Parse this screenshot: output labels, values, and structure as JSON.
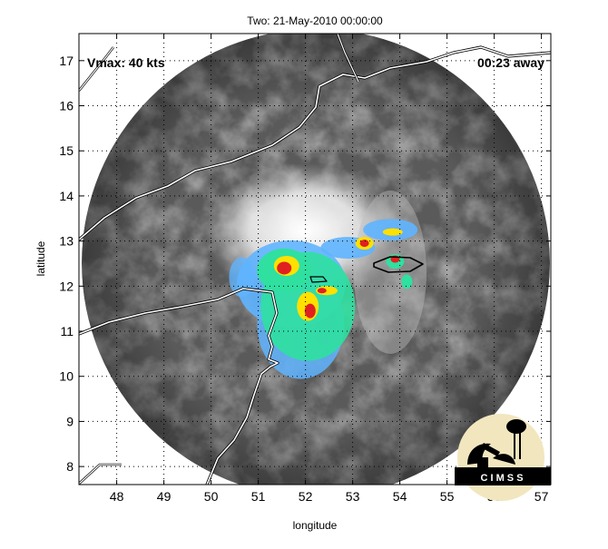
{
  "title": "Two: 21-May-2010 00:00:00",
  "xlabel": "longitude",
  "ylabel": "latitude",
  "vmax_label": "Vmax: 40 kts",
  "time_away_label": "00:23 away",
  "logo_text": "C I M S S",
  "xlim": [
    47.2,
    57.2
  ],
  "ylim": [
    7.6,
    17.6
  ],
  "x_ticks": [
    "48",
    "49",
    "50",
    "51",
    "52",
    "53",
    "54",
    "55",
    "56",
    "57"
  ],
  "y_ticks": [
    "8",
    "9",
    "10",
    "11",
    "12",
    "13",
    "14",
    "15",
    "16",
    "17"
  ],
  "storm_center": [
    52.3,
    12.4
  ],
  "colors": {
    "background": "#ffffff",
    "frame": "#000000",
    "coastline": "#ffffff",
    "rain_light": "#5fb4ff",
    "rain_moderate": "#2fe0a0",
    "rain_heavy": "#ffe000",
    "rain_extreme": "#e02020"
  }
}
